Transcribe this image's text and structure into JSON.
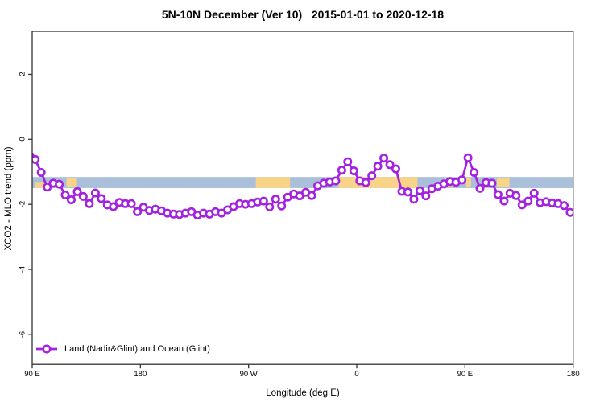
{
  "title": "5N-10N December (Ver 10)   2015-01-01 to 2020-12-18",
  "chart_data": {
    "type": "line",
    "title": "5N-10N December (Ver 10)   2015-01-01 to 2020-12-18",
    "xlabel": "Longitude (deg E)",
    "ylabel": "XCO2 - MLO trend (ppm)",
    "x_axis": {
      "note": "longitude axis wraps: 90E to 180 then westward around globe to 180 again",
      "start_lon": 90,
      "end_lon": 540,
      "ticks": [
        {
          "lon": 90,
          "label": "90 E"
        },
        {
          "lon": 180,
          "label": "180"
        },
        {
          "lon": 270,
          "label": "90 W"
        },
        {
          "lon": 360,
          "label": "0"
        },
        {
          "lon": 450,
          "label": "90 E"
        },
        {
          "lon": 540,
          "label": "180"
        }
      ]
    },
    "y_axis": {
      "min": -6.92,
      "max": 3.32,
      "ticks": [
        {
          "v": 2,
          "label": "2"
        },
        {
          "v": 0,
          "label": "0"
        },
        {
          "v": -2,
          "label": "-2"
        },
        {
          "v": -4,
          "label": "-4"
        },
        {
          "v": -6,
          "label": "-6"
        }
      ]
    },
    "legend": [
      {
        "label": "Land (Nadir&Glint) and Ocean (Glint)",
        "color": "#A322DF",
        "marker": "open-circle"
      }
    ],
    "land_ocean_band": {
      "ocean_color": "#A9BFDA",
      "land_color": "#F8D488",
      "value_top": -1.16,
      "value_bottom": -1.5,
      "land_segments": [
        {
          "from": 92.5,
          "to": 103.5,
          "part": "lower"
        },
        {
          "from": 118.5,
          "to": 126.5,
          "part": "mid"
        },
        {
          "from": 276.0,
          "to": 304.5,
          "part": "full"
        },
        {
          "from": 345.0,
          "to": 410.5,
          "part": "full"
        },
        {
          "from": 433.5,
          "to": 442.5,
          "part": "mid"
        },
        {
          "from": 451.0,
          "to": 455.0,
          "part": "mid"
        },
        {
          "from": 476.5,
          "to": 487.0,
          "part": "mid"
        }
      ]
    },
    "series": [
      {
        "name": "Land (Nadir&Glint) and Ocean (Glint)",
        "color": "#A322DF",
        "marker": "open-circle",
        "x": [
          90,
          92.5,
          97.5,
          102.5,
          107.5,
          112.5,
          117.5,
          122.5,
          127.5,
          132.5,
          137.5,
          142.5,
          147.5,
          152.5,
          157.5,
          162.5,
          167.5,
          172.5,
          177.5,
          182.5,
          187.5,
          192.5,
          197.5,
          202.5,
          207.5,
          212.5,
          217.5,
          222.5,
          227.5,
          232.5,
          237.5,
          242.5,
          247.5,
          252.5,
          257.5,
          262.5,
          267.5,
          272.5,
          277.5,
          282.5,
          287.5,
          292.5,
          297.5,
          302.5,
          307.5,
          312.5,
          317.5,
          322.5,
          327.5,
          332.5,
          337.5,
          342.5,
          347.5,
          352.5,
          357.5,
          362.5,
          367.5,
          372.5,
          377.5,
          382.5,
          387.5,
          392.5,
          397.5,
          402.5,
          407.5,
          412.5,
          417.5,
          422.5,
          427.5,
          432.5,
          437.5,
          442.5,
          447.5,
          452.5,
          457.5,
          462.5,
          467.5,
          472.5,
          477.5,
          482.5,
          487.5,
          492.5,
          497.5,
          502.5,
          507.5,
          512.5,
          517.5,
          522.5,
          527.5,
          532.5,
          537.5
        ],
        "y": [
          -0.42,
          -0.62,
          -1.02,
          -1.47,
          -1.35,
          -1.38,
          -1.71,
          -1.86,
          -1.61,
          -1.76,
          -1.98,
          -1.65,
          -1.82,
          -2.02,
          -2.07,
          -1.94,
          -1.98,
          -1.98,
          -2.23,
          -2.09,
          -2.19,
          -2.15,
          -2.2,
          -2.27,
          -2.3,
          -2.31,
          -2.27,
          -2.23,
          -2.33,
          -2.27,
          -2.3,
          -2.23,
          -2.27,
          -2.17,
          -2.07,
          -1.98,
          -2.0,
          -1.98,
          -1.93,
          -1.9,
          -2.08,
          -1.84,
          -2.05,
          -1.78,
          -1.68,
          -1.74,
          -1.63,
          -1.73,
          -1.43,
          -1.35,
          -1.31,
          -1.28,
          -0.95,
          -0.69,
          -0.97,
          -1.28,
          -1.33,
          -1.12,
          -0.83,
          -0.58,
          -0.78,
          -0.91,
          -1.6,
          -1.62,
          -1.84,
          -1.58,
          -1.74,
          -1.52,
          -1.44,
          -1.37,
          -1.3,
          -1.32,
          -1.25,
          -0.57,
          -1.02,
          -1.51,
          -1.33,
          -1.35,
          -1.7,
          -1.9,
          -1.66,
          -1.73,
          -2.02,
          -1.9,
          -1.66,
          -1.95,
          -1.92,
          -1.96,
          -1.98,
          -2.04,
          -2.25
        ]
      }
    ]
  }
}
